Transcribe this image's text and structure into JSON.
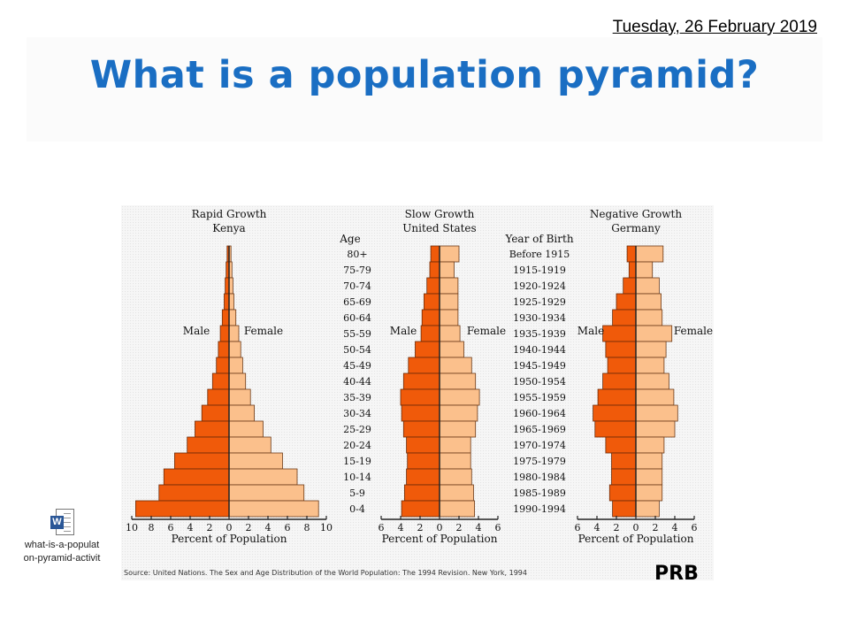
{
  "slide": {
    "date": "Tuesday, 26 February 2019",
    "title": "What is a population pyramid?",
    "attachment": {
      "line1": "what-is-a-populat",
      "line2": "on-pyramid-activit",
      "icon": "word-document-icon"
    },
    "source": "Source: United Nations. The Sex and Age Distribution of the World Population: The 1994 Revision. New York, 1994",
    "logo": "PRB"
  },
  "colors": {
    "male": "#f05a0a",
    "female": "#fbc08c",
    "title": "#1a6ec3"
  },
  "labels": {
    "age_header": "Age",
    "yob_header": "Year of Birth",
    "male": "Male",
    "female": "Female",
    "xlabel": "Percent of Population"
  },
  "age_groups": [
    "80+",
    "75-79",
    "70-74",
    "65-69",
    "60-64",
    "55-59",
    "50-54",
    "45-49",
    "40-44",
    "35-39",
    "30-34",
    "25-29",
    "20-24",
    "15-19",
    "10-14",
    "5-9",
    "0-4"
  ],
  "years_of_birth": [
    "Before 1915",
    "1915-1919",
    "1920-1924",
    "1925-1929",
    "1930-1934",
    "1935-1939",
    "1940-1944",
    "1945-1949",
    "1950-1954",
    "1955-1959",
    "1960-1964",
    "1965-1969",
    "1970-1974",
    "1975-1979",
    "1980-1984",
    "1985-1989",
    "1990-1994"
  ],
  "chart_data": [
    {
      "type": "bar",
      "orientation": "horizontal-pyramid",
      "title": "Rapid Growth",
      "subtitle": "Kenya",
      "xlabel": "Percent of Population",
      "xlim": [
        -10,
        10
      ],
      "xticks": [
        "10",
        "8",
        "6",
        "4",
        "2",
        "0",
        "2",
        "4",
        "6",
        "8",
        "10"
      ],
      "series": [
        {
          "name": "Male",
          "values": [
            0.2,
            0.3,
            0.4,
            0.5,
            0.7,
            0.9,
            1.1,
            1.3,
            1.7,
            2.2,
            2.8,
            3.5,
            4.3,
            5.6,
            6.7,
            7.2,
            9.6
          ]
        },
        {
          "name": "Female",
          "values": [
            0.2,
            0.3,
            0.4,
            0.5,
            0.7,
            1.0,
            1.2,
            1.4,
            1.7,
            2.2,
            2.6,
            3.5,
            4.3,
            5.5,
            7.0,
            7.7,
            9.2
          ]
        }
      ]
    },
    {
      "type": "bar",
      "orientation": "horizontal-pyramid",
      "title": "Slow Growth",
      "subtitle": "United States",
      "xlabel": "Percent of Population",
      "xlim": [
        -6,
        6
      ],
      "xticks": [
        "6",
        "4",
        "2",
        "0",
        "2",
        "4",
        "6"
      ],
      "series": [
        {
          "name": "Male",
          "values": [
            0.9,
            1.0,
            1.3,
            1.6,
            1.8,
            1.9,
            2.5,
            3.2,
            3.7,
            4.0,
            3.9,
            3.7,
            3.4,
            3.3,
            3.4,
            3.6,
            3.9
          ]
        },
        {
          "name": "Female",
          "values": [
            2.0,
            1.5,
            1.9,
            1.9,
            1.9,
            2.1,
            2.5,
            3.3,
            3.7,
            4.1,
            3.9,
            3.7,
            3.2,
            3.2,
            3.3,
            3.5,
            3.6
          ]
        }
      ]
    },
    {
      "type": "bar",
      "orientation": "horizontal-pyramid",
      "title": "Negative Growth",
      "subtitle": "Germany",
      "xlabel": "Percent of Population",
      "xlim": [
        -6,
        6
      ],
      "xticks": [
        "6",
        "4",
        "2",
        "0",
        "2",
        "4",
        "6"
      ],
      "series": [
        {
          "name": "Male",
          "values": [
            0.9,
            0.7,
            1.3,
            2.0,
            2.4,
            3.4,
            3.1,
            2.9,
            3.4,
            3.9,
            4.4,
            4.2,
            3.1,
            2.5,
            2.5,
            2.7,
            2.4
          ]
        },
        {
          "name": "Female",
          "values": [
            2.8,
            1.7,
            2.4,
            2.6,
            2.7,
            3.7,
            3.1,
            2.9,
            3.4,
            3.9,
            4.3,
            4.0,
            2.9,
            2.7,
            2.7,
            2.7,
            2.4
          ]
        }
      ]
    }
  ]
}
